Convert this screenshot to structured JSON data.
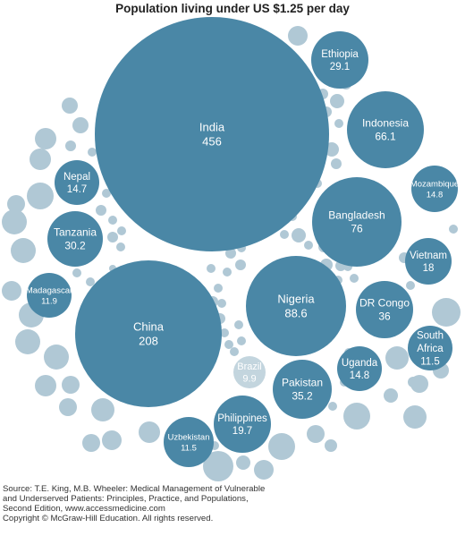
{
  "chart_data": {
    "type": "bubble",
    "title": "Population living under US $1.25 per day",
    "bubbles": [
      {
        "name": "India",
        "value": "456"
      },
      {
        "name": "China",
        "value": "208"
      },
      {
        "name": "Nigeria",
        "value": "88.6"
      },
      {
        "name": "Bangladesh",
        "value": "76"
      },
      {
        "name": "Indonesia",
        "value": "66.1"
      },
      {
        "name": "DR Congo",
        "value": "36"
      },
      {
        "name": "Pakistan",
        "value": "35.2"
      },
      {
        "name": "Tanzania",
        "value": "30.2"
      },
      {
        "name": "Ethiopia",
        "value": "29.1"
      },
      {
        "name": "Philippines",
        "value": "19.7"
      },
      {
        "name": "Vietnam",
        "value": "18"
      },
      {
        "name": "Mozambique",
        "value": "14.8"
      },
      {
        "name": "Uganda",
        "value": "14.8"
      },
      {
        "name": "Nepal",
        "value": "14.7"
      },
      {
        "name": "Madagascar",
        "value": "11.9"
      },
      {
        "name": "South Africa",
        "value": "11.5"
      },
      {
        "name": "Uzbekistan",
        "value": "11.5"
      },
      {
        "name": "Brazil",
        "value": "9.9"
      }
    ],
    "colors": {
      "labeled": "#4a87a6",
      "unlabeled": "#b0c8d5",
      "brazil": "#c3d5de",
      "label_text": "#ffffff"
    }
  },
  "source": {
    "lines": [
      "Source: T.E. King, M.B. Wheeler: Medical Management of Vulnerable",
      "and Underserved Patients: Principles, Practice, and Populations,",
      "Second Edition, www.accessmedicine.com",
      "Copyright © McGraw-Hill Education. All rights reserved."
    ]
  }
}
